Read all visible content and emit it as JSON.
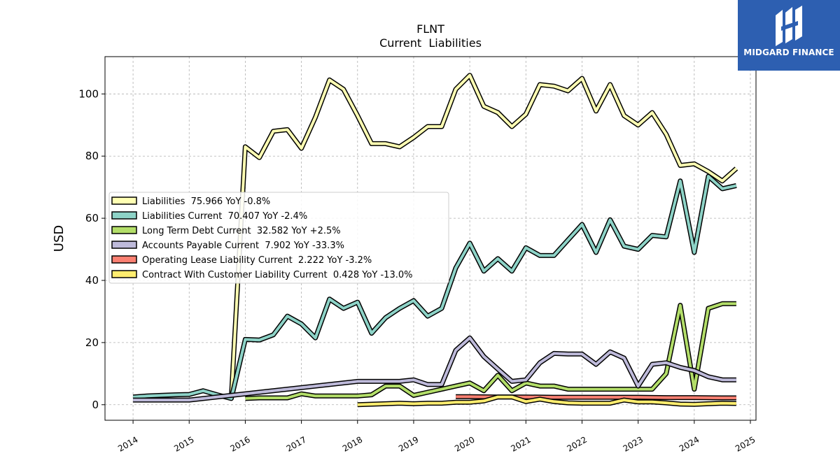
{
  "chart_data": {
    "type": "line",
    "title": "FLNT",
    "subtitle": "Current  Liabilities",
    "xlabel": "",
    "ylabel": "USD",
    "xlim": [
      2013.5,
      2025.1
    ],
    "ylim": [
      -5,
      112
    ],
    "x_ticks": [
      "2014",
      "2015",
      "2016",
      "2017",
      "2018",
      "2019",
      "2020",
      "2021",
      "2022",
      "2023",
      "2024",
      "2025"
    ],
    "y_ticks": [
      0,
      20,
      40,
      60,
      80,
      100
    ],
    "grid": true,
    "legend_position": "center-left",
    "series": [
      {
        "name": "Liabilities  75.966 YoY -0.8%",
        "color": "#ffffb3",
        "x": [
          2015.75,
          2016.0,
          2016.25,
          2016.5,
          2016.75,
          2017.0,
          2017.25,
          2017.5,
          2017.75,
          2018.0,
          2018.25,
          2018.5,
          2018.75,
          2019.0,
          2019.25,
          2019.5,
          2019.75,
          2020.0,
          2020.25,
          2020.5,
          2020.75,
          2021.0,
          2021.25,
          2021.5,
          2021.75,
          2022.0,
          2022.25,
          2022.5,
          2022.75,
          2023.0,
          2023.25,
          2023.5,
          2023.75,
          2024.0,
          2024.25,
          2024.5,
          2024.75
        ],
        "y": [
          2.0,
          83.0,
          79.5,
          88.0,
          88.5,
          82.5,
          92.5,
          104.5,
          101.5,
          93.0,
          84.0,
          84.0,
          83.0,
          86.0,
          89.5,
          89.5,
          101.5,
          106.0,
          96.0,
          94.0,
          89.5,
          93.5,
          103.0,
          102.5,
          101.0,
          105.0,
          94.5,
          103.0,
          93.0,
          90.0,
          94.0,
          87.0,
          77.0,
          77.5,
          75.0,
          72.0,
          76.0
        ]
      },
      {
        "name": "Liabilities Current  70.407 YoY -2.4%",
        "color": "#8dd3c7",
        "x": [
          2014.0,
          2014.25,
          2014.5,
          2014.75,
          2015.0,
          2015.25,
          2015.5,
          2015.75,
          2016.0,
          2016.25,
          2016.5,
          2016.75,
          2017.0,
          2017.25,
          2017.5,
          2017.75,
          2018.0,
          2018.25,
          2018.5,
          2018.75,
          2019.0,
          2019.25,
          2019.5,
          2019.75,
          2020.0,
          2020.25,
          2020.5,
          2020.75,
          2021.0,
          2021.25,
          2021.5,
          2021.75,
          2022.0,
          2022.25,
          2022.5,
          2022.75,
          2023.0,
          2023.25,
          2023.5,
          2023.75,
          2024.0,
          2024.25,
          2024.5,
          2024.75
        ],
        "y": [
          2.5,
          2.8,
          3.0,
          3.2,
          3.3,
          4.5,
          3.2,
          2.0,
          21.0,
          20.8,
          22.5,
          28.5,
          26.0,
          21.5,
          34.0,
          31.0,
          33.0,
          23.0,
          28.0,
          31.0,
          33.5,
          28.5,
          31.0,
          44.0,
          52.0,
          43.0,
          47.0,
          43.0,
          50.5,
          48.0,
          48.0,
          53.0,
          58.0,
          49.0,
          59.5,
          51.0,
          50.0,
          54.5,
          54.0,
          72.0,
          49.0,
          73.5,
          69.5,
          70.5
        ]
      },
      {
        "name": "Long Term Debt Current  32.582 YoY +2.5%",
        "color": "#b3de69",
        "x": [
          2016.0,
          2016.25,
          2016.5,
          2016.75,
          2017.0,
          2017.25,
          2017.5,
          2017.75,
          2018.0,
          2018.25,
          2018.5,
          2018.75,
          2019.0,
          2019.25,
          2019.5,
          2019.75,
          2020.0,
          2020.25,
          2020.5,
          2020.75,
          2021.0,
          2021.25,
          2021.5,
          2021.75,
          2022.0,
          2022.25,
          2022.5,
          2022.75,
          2023.0,
          2023.25,
          2023.5,
          2023.75,
          2024.0,
          2024.25,
          2024.5,
          2024.75
        ],
        "y": [
          2.0,
          2.2,
          2.2,
          2.2,
          3.5,
          2.8,
          2.8,
          2.8,
          2.8,
          3.2,
          6.0,
          6.0,
          3.0,
          4.0,
          5.0,
          6.0,
          7.0,
          4.5,
          9.5,
          4.5,
          7.0,
          6.0,
          6.0,
          5.0,
          5.0,
          5.0,
          5.0,
          5.0,
          5.0,
          5.0,
          10.0,
          32.0,
          5.0,
          31.0,
          32.5,
          32.5
        ]
      },
      {
        "name": "Accounts Payable Current  7.902 YoY -33.3%",
        "color": "#bebada",
        "x": [
          2014.0,
          2015.0,
          2018.0,
          2018.75,
          2019.0,
          2019.25,
          2019.5,
          2019.75,
          2020.0,
          2020.25,
          2020.5,
          2020.75,
          2021.0,
          2021.25,
          2021.5,
          2021.75,
          2022.0,
          2022.25,
          2022.5,
          2022.75,
          2023.0,
          2023.25,
          2023.5,
          2023.75,
          2024.0,
          2024.25,
          2024.5,
          2024.75
        ],
        "y": [
          1.5,
          1.5,
          7.5,
          7.5,
          8.0,
          6.5,
          6.5,
          17.5,
          21.5,
          15.5,
          11.5,
          7.5,
          8.0,
          13.5,
          16.5,
          16.3,
          16.3,
          13.0,
          17.0,
          15.0,
          6.0,
          13.0,
          13.5,
          12.0,
          11.0,
          9.0,
          8.0,
          8.0
        ]
      },
      {
        "name": "Operating Lease Liability Current  2.222 YoY -3.2%",
        "color": "#fb8072",
        "x": [
          2019.75,
          2020.0,
          2020.5,
          2021.0,
          2021.5,
          2022.0,
          2022.5,
          2023.0,
          2023.5,
          2024.0,
          2024.5,
          2024.75
        ],
        "y": [
          2.6,
          2.6,
          2.5,
          2.5,
          2.4,
          2.4,
          2.4,
          2.4,
          2.3,
          2.3,
          2.2,
          2.2
        ]
      },
      {
        "name": "Contract With Customer Liability Current  0.428 YoY -13.0%",
        "color": "#ffed6f",
        "x": [
          2018.0,
          2018.5,
          2018.75,
          2019.0,
          2019.25,
          2019.5,
          2019.75,
          2020.0,
          2020.25,
          2020.5,
          2020.75,
          2021.0,
          2021.25,
          2021.5,
          2021.75,
          2022.0,
          2022.25,
          2022.5,
          2022.75,
          2023.0,
          2023.25,
          2023.5,
          2023.75,
          2024.0,
          2024.25,
          2024.5,
          2024.75
        ],
        "y": [
          0.0,
          0.3,
          0.5,
          0.3,
          0.5,
          0.5,
          0.8,
          0.8,
          1.2,
          2.5,
          2.5,
          1.0,
          1.8,
          1.0,
          0.6,
          0.5,
          0.5,
          0.5,
          1.5,
          0.9,
          0.9,
          0.6,
          0.2,
          0.1,
          0.3,
          0.5,
          0.4
        ]
      }
    ]
  },
  "logo": {
    "text": "MIDGARD FINANCE",
    "icon": "midgard-logo-icon"
  }
}
